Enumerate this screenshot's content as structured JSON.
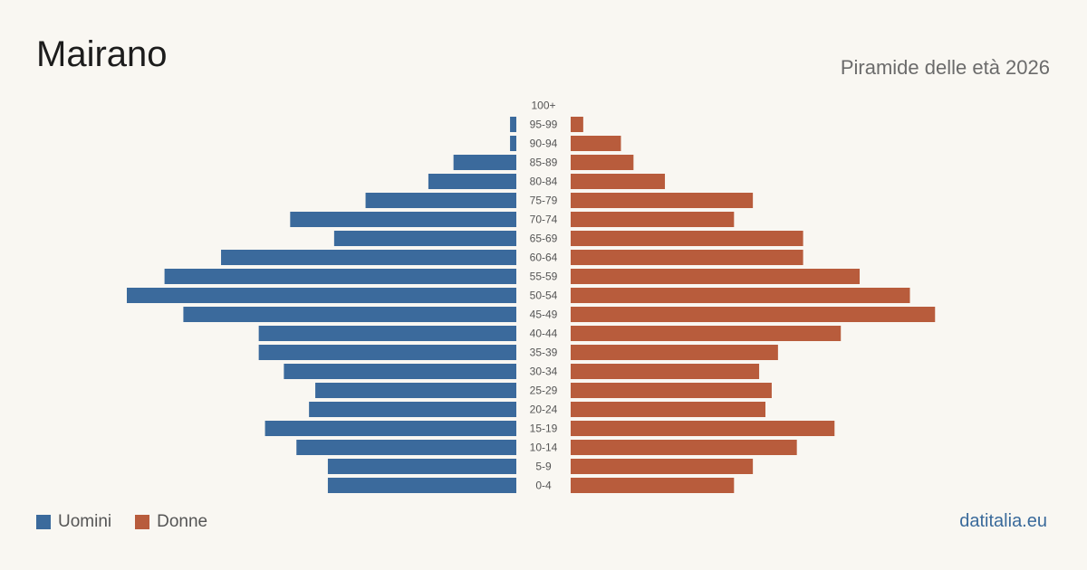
{
  "header": {
    "title": "Mairano",
    "subtitle": "Piramide delle età 2026"
  },
  "legend": {
    "men_label": "Uomini",
    "women_label": "Donne"
  },
  "footer": {
    "source": "datitalia.eu"
  },
  "colors": {
    "men": "#3b6a9c",
    "women": "#b85c3c",
    "age_label": "#555555"
  },
  "chart_data": {
    "type": "bar",
    "orientation": "horizontal-pyramid",
    "title": "Piramide delle età 2026",
    "categories": [
      "100+",
      "95-99",
      "90-94",
      "85-89",
      "80-84",
      "75-79",
      "70-74",
      "65-69",
      "60-64",
      "55-59",
      "50-54",
      "45-49",
      "40-44",
      "35-39",
      "30-34",
      "25-29",
      "20-24",
      "15-19",
      "10-14",
      "5-9",
      "0-4"
    ],
    "series": [
      {
        "name": "Uomini",
        "values": [
          0,
          1,
          1,
          10,
          14,
          24,
          36,
          29,
          47,
          56,
          62,
          53,
          41,
          41,
          37,
          32,
          33,
          40,
          35,
          30,
          30
        ]
      },
      {
        "name": "Donne",
        "values": [
          0,
          2,
          8,
          10,
          15,
          29,
          26,
          37,
          37,
          46,
          54,
          58,
          43,
          33,
          30,
          32,
          31,
          42,
          36,
          29,
          26
        ]
      }
    ],
    "grid": false,
    "legend_position": "bottom-left"
  }
}
